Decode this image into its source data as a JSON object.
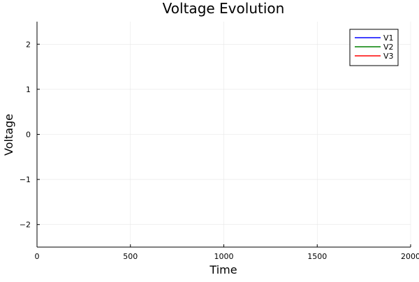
{
  "chart_data": {
    "type": "line",
    "title": "Voltage Evolution",
    "xlabel": "Time",
    "ylabel": "Voltage",
    "xlim": [
      0,
      2000
    ],
    "ylim": [
      -2.5,
      2.5
    ],
    "xticks": [
      0,
      500,
      1000,
      1500,
      2000
    ],
    "yticks": [
      -2,
      -1,
      0,
      1,
      2
    ],
    "xtick_labels": [
      "0",
      "500",
      "1000",
      "1500",
      "2000"
    ],
    "ytick_labels": [
      "−2",
      "−1",
      "0",
      "1",
      "2"
    ],
    "grid": true,
    "legend_position": "top-right",
    "series": [
      {
        "name": "V1",
        "color": "#0000ff",
        "x": [],
        "y": []
      },
      {
        "name": "V2",
        "color": "#008000",
        "x": [],
        "y": []
      },
      {
        "name": "V3",
        "color": "#ff0000",
        "x": [],
        "y": []
      }
    ]
  }
}
